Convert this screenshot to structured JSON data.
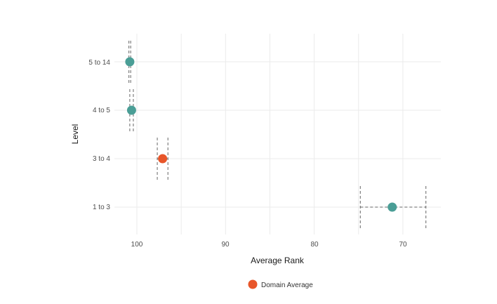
{
  "chart_data": {
    "type": "scatter",
    "title": "",
    "xlabel": "Average Rank",
    "ylabel": "Level",
    "x_reversed": true,
    "xlim": [
      102.5,
      65.8
    ],
    "x_ticks": [
      100,
      90,
      80,
      70
    ],
    "x_minor_ticks": [
      95,
      85,
      75
    ],
    "categories": [
      "1 to 3",
      "3 to 4",
      "4 to 5",
      "5 to 14"
    ],
    "grid": true,
    "legend_position": "bottom",
    "legend": [
      {
        "label": "Domain Average",
        "color": "#e8562a"
      }
    ],
    "points": [
      {
        "level": "5 to 14",
        "x": 100.8,
        "xmin": 100.9,
        "xmax": 100.7,
        "color": "#4a9e96",
        "highlight": false,
        "errorbar": "vertical"
      },
      {
        "level": "4 to 5",
        "x": 100.6,
        "xmin": 100.8,
        "xmax": 100.4,
        "color": "#4a9e96",
        "highlight": false,
        "errorbar": "vertical"
      },
      {
        "level": "3 to 4",
        "x": 97.1,
        "xmin": 97.7,
        "xmax": 96.5,
        "color": "#e8562a",
        "highlight": true,
        "errorbar": "vertical"
      },
      {
        "level": "1 to 3",
        "x": 71.2,
        "xmin": 74.8,
        "xmax": 67.4,
        "color": "#4a9e96",
        "highlight": false,
        "errorbar": "horizontal"
      }
    ]
  },
  "axis": {
    "x_title": "Average Rank",
    "y_title": "Level",
    "x_tick_labels": [
      "100",
      "90",
      "80",
      "70"
    ],
    "y_tick_labels": [
      "5 to 14",
      "4 to 5",
      "3 to 4",
      "1 to 3"
    ]
  },
  "legend": {
    "label": "Domain Average",
    "color": "#e8562a"
  },
  "colors": {
    "teal": "#4a9e96",
    "orange": "#e8562a",
    "grid": "#ebebeb",
    "errorbar": "#666666"
  }
}
